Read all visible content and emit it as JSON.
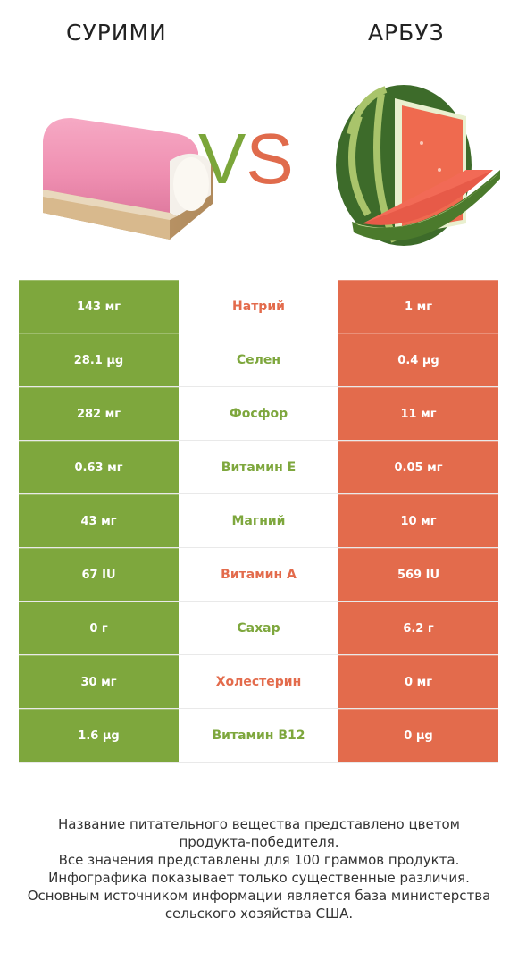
{
  "header": {
    "left_title": "СУРИМИ",
    "right_title": "АРБУЗ",
    "vs_v": "V",
    "vs_s": "S"
  },
  "colors": {
    "winner_left": "#7ea73d",
    "winner_right": "#e36b4c"
  },
  "rows": [
    {
      "left": "143 мг",
      "name": "Натрий",
      "right": "1 мг",
      "winner": "right"
    },
    {
      "left": "28.1 µg",
      "name": "Селен",
      "right": "0.4 µg",
      "winner": "left"
    },
    {
      "left": "282 мг",
      "name": "Фосфор",
      "right": "11 мг",
      "winner": "left"
    },
    {
      "left": "0.63 мг",
      "name": "Витамин E",
      "right": "0.05 мг",
      "winner": "left"
    },
    {
      "left": "43 мг",
      "name": "Магний",
      "right": "10 мг",
      "winner": "left"
    },
    {
      "left": "67 IU",
      "name": "Витамин A",
      "right": "569 IU",
      "winner": "right"
    },
    {
      "left": "0 г",
      "name": "Сахар",
      "right": "6.2 г",
      "winner": "left"
    },
    {
      "left": "30 мг",
      "name": "Холестерин",
      "right": "0 мг",
      "winner": "right"
    },
    {
      "left": "1.6 µg",
      "name": "Витамин B12",
      "right": "0 µg",
      "winner": "left"
    }
  ],
  "footer": {
    "lines": [
      "Название питательного вещества представлено цветом",
      "продукта-победителя.",
      "Все значения представлены для 100 граммов продукта.",
      "Инфографика показывает только существенные различия.",
      "Основным источником информации является база министерства",
      "сельского хозяйства США."
    ]
  }
}
